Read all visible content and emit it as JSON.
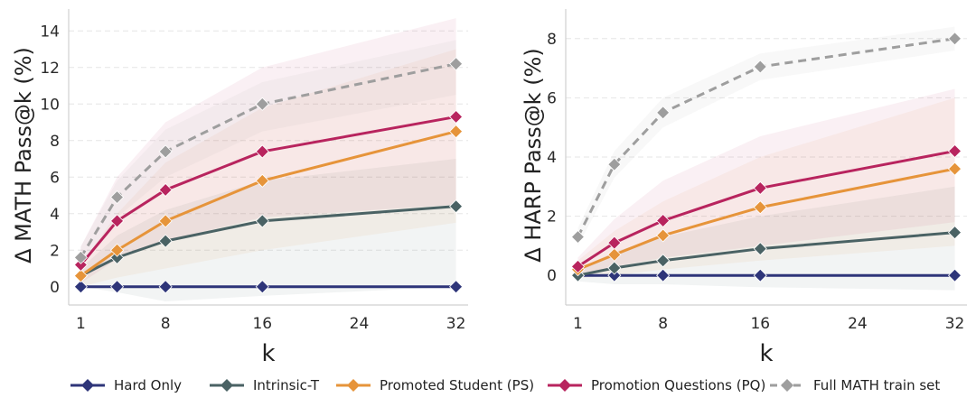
{
  "series_styles": [
    {
      "name": "Hard Only",
      "color": "#2e3579",
      "dashed": false
    },
    {
      "name": "Intrinsic-T",
      "color": "#4a6264",
      "dashed": false
    },
    {
      "name": "Promoted Student (PS)",
      "color": "#e6943a",
      "dashed": false
    },
    {
      "name": "Promotion Questions (PQ)",
      "color": "#b8245e",
      "dashed": false
    },
    {
      "name": "Full MATH train set",
      "color": "#9e9e9e",
      "dashed": true
    }
  ],
  "chart_data": [
    {
      "type": "line",
      "xlabel": "k",
      "ylabel": "Δ MATH Pass@k (%)",
      "x": [
        1,
        4,
        8,
        16,
        32
      ],
      "xticks": [
        1,
        8,
        16,
        24,
        32
      ],
      "yticks": [
        0,
        2,
        4,
        6,
        8,
        10,
        12,
        14
      ],
      "xlim": [
        0,
        33
      ],
      "ylim": [
        -1,
        15.2
      ],
      "series": [
        {
          "name": "Hard Only",
          "values": [
            0,
            0,
            0,
            0,
            0
          ],
          "band_low": [
            0,
            0,
            0,
            0,
            0
          ],
          "band_high": [
            0,
            0,
            0,
            0,
            0
          ]
        },
        {
          "name": "Intrinsic-T",
          "values": [
            0.6,
            1.6,
            2.5,
            3.6,
            4.4
          ],
          "band_low": [
            0.0,
            -0.3,
            -0.8,
            -0.5,
            0.0
          ],
          "band_high": [
            1.0,
            2.8,
            4.2,
            5.8,
            7.0
          ]
        },
        {
          "name": "Promoted Student (PS)",
          "values": [
            0.6,
            2.0,
            3.6,
            5.8,
            8.5
          ],
          "band_low": [
            0.0,
            0.5,
            1.0,
            2.0,
            3.5
          ],
          "band_high": [
            1.2,
            4.0,
            6.8,
            9.8,
            13.0
          ]
        },
        {
          "name": "Promotion Questions (PQ)",
          "values": [
            1.2,
            3.6,
            5.3,
            7.4,
            9.3
          ],
          "band_low": [
            0.2,
            1.5,
            2.5,
            3.8,
            4.5
          ],
          "band_high": [
            2.2,
            6.0,
            9.0,
            12.0,
            14.7
          ]
        },
        {
          "name": "Full MATH train set",
          "values": [
            1.6,
            4.9,
            7.4,
            10.0,
            12.2
          ],
          "band_low": [
            1.0,
            3.8,
            6.0,
            8.5,
            10.5
          ],
          "band_high": [
            2.2,
            5.8,
            8.6,
            11.2,
            13.5
          ]
        }
      ]
    },
    {
      "type": "line",
      "xlabel": "k",
      "ylabel": "Δ HARP Pass@k (%)",
      "x": [
        1,
        4,
        8,
        16,
        32
      ],
      "xticks": [
        1,
        8,
        16,
        24,
        32
      ],
      "yticks": [
        0,
        2,
        4,
        6,
        8
      ],
      "xlim": [
        0,
        33
      ],
      "ylim": [
        -1,
        9.0
      ],
      "series": [
        {
          "name": "Hard Only",
          "values": [
            0,
            0,
            0,
            0,
            0
          ],
          "band_low": [
            0,
            0,
            0,
            0,
            0
          ],
          "band_high": [
            0,
            0,
            0,
            0,
            0
          ]
        },
        {
          "name": "Intrinsic-T",
          "values": [
            0.0,
            0.25,
            0.5,
            0.9,
            1.45
          ],
          "band_low": [
            -0.2,
            -0.3,
            -0.3,
            -0.4,
            -0.5
          ],
          "band_high": [
            0.2,
            0.8,
            1.3,
            2.0,
            3.0
          ]
        },
        {
          "name": "Promoted Student (PS)",
          "values": [
            0.2,
            0.7,
            1.35,
            2.3,
            3.6
          ],
          "band_low": [
            -0.1,
            0.0,
            0.2,
            0.5,
            1.0
          ],
          "band_high": [
            0.5,
            1.5,
            2.5,
            4.0,
            6.0
          ]
        },
        {
          "name": "Promotion Questions (PQ)",
          "values": [
            0.3,
            1.1,
            1.85,
            2.95,
            4.2
          ],
          "band_low": [
            0.0,
            0.3,
            0.6,
            1.0,
            1.8
          ],
          "band_high": [
            0.6,
            1.9,
            3.2,
            4.7,
            6.3
          ]
        },
        {
          "name": "Full MATH train set",
          "values": [
            1.3,
            3.75,
            5.5,
            7.05,
            8.0
          ],
          "band_low": [
            1.0,
            3.3,
            5.0,
            6.6,
            7.6
          ],
          "band_high": [
            1.6,
            4.2,
            6.0,
            7.5,
            8.4
          ]
        }
      ]
    }
  ]
}
